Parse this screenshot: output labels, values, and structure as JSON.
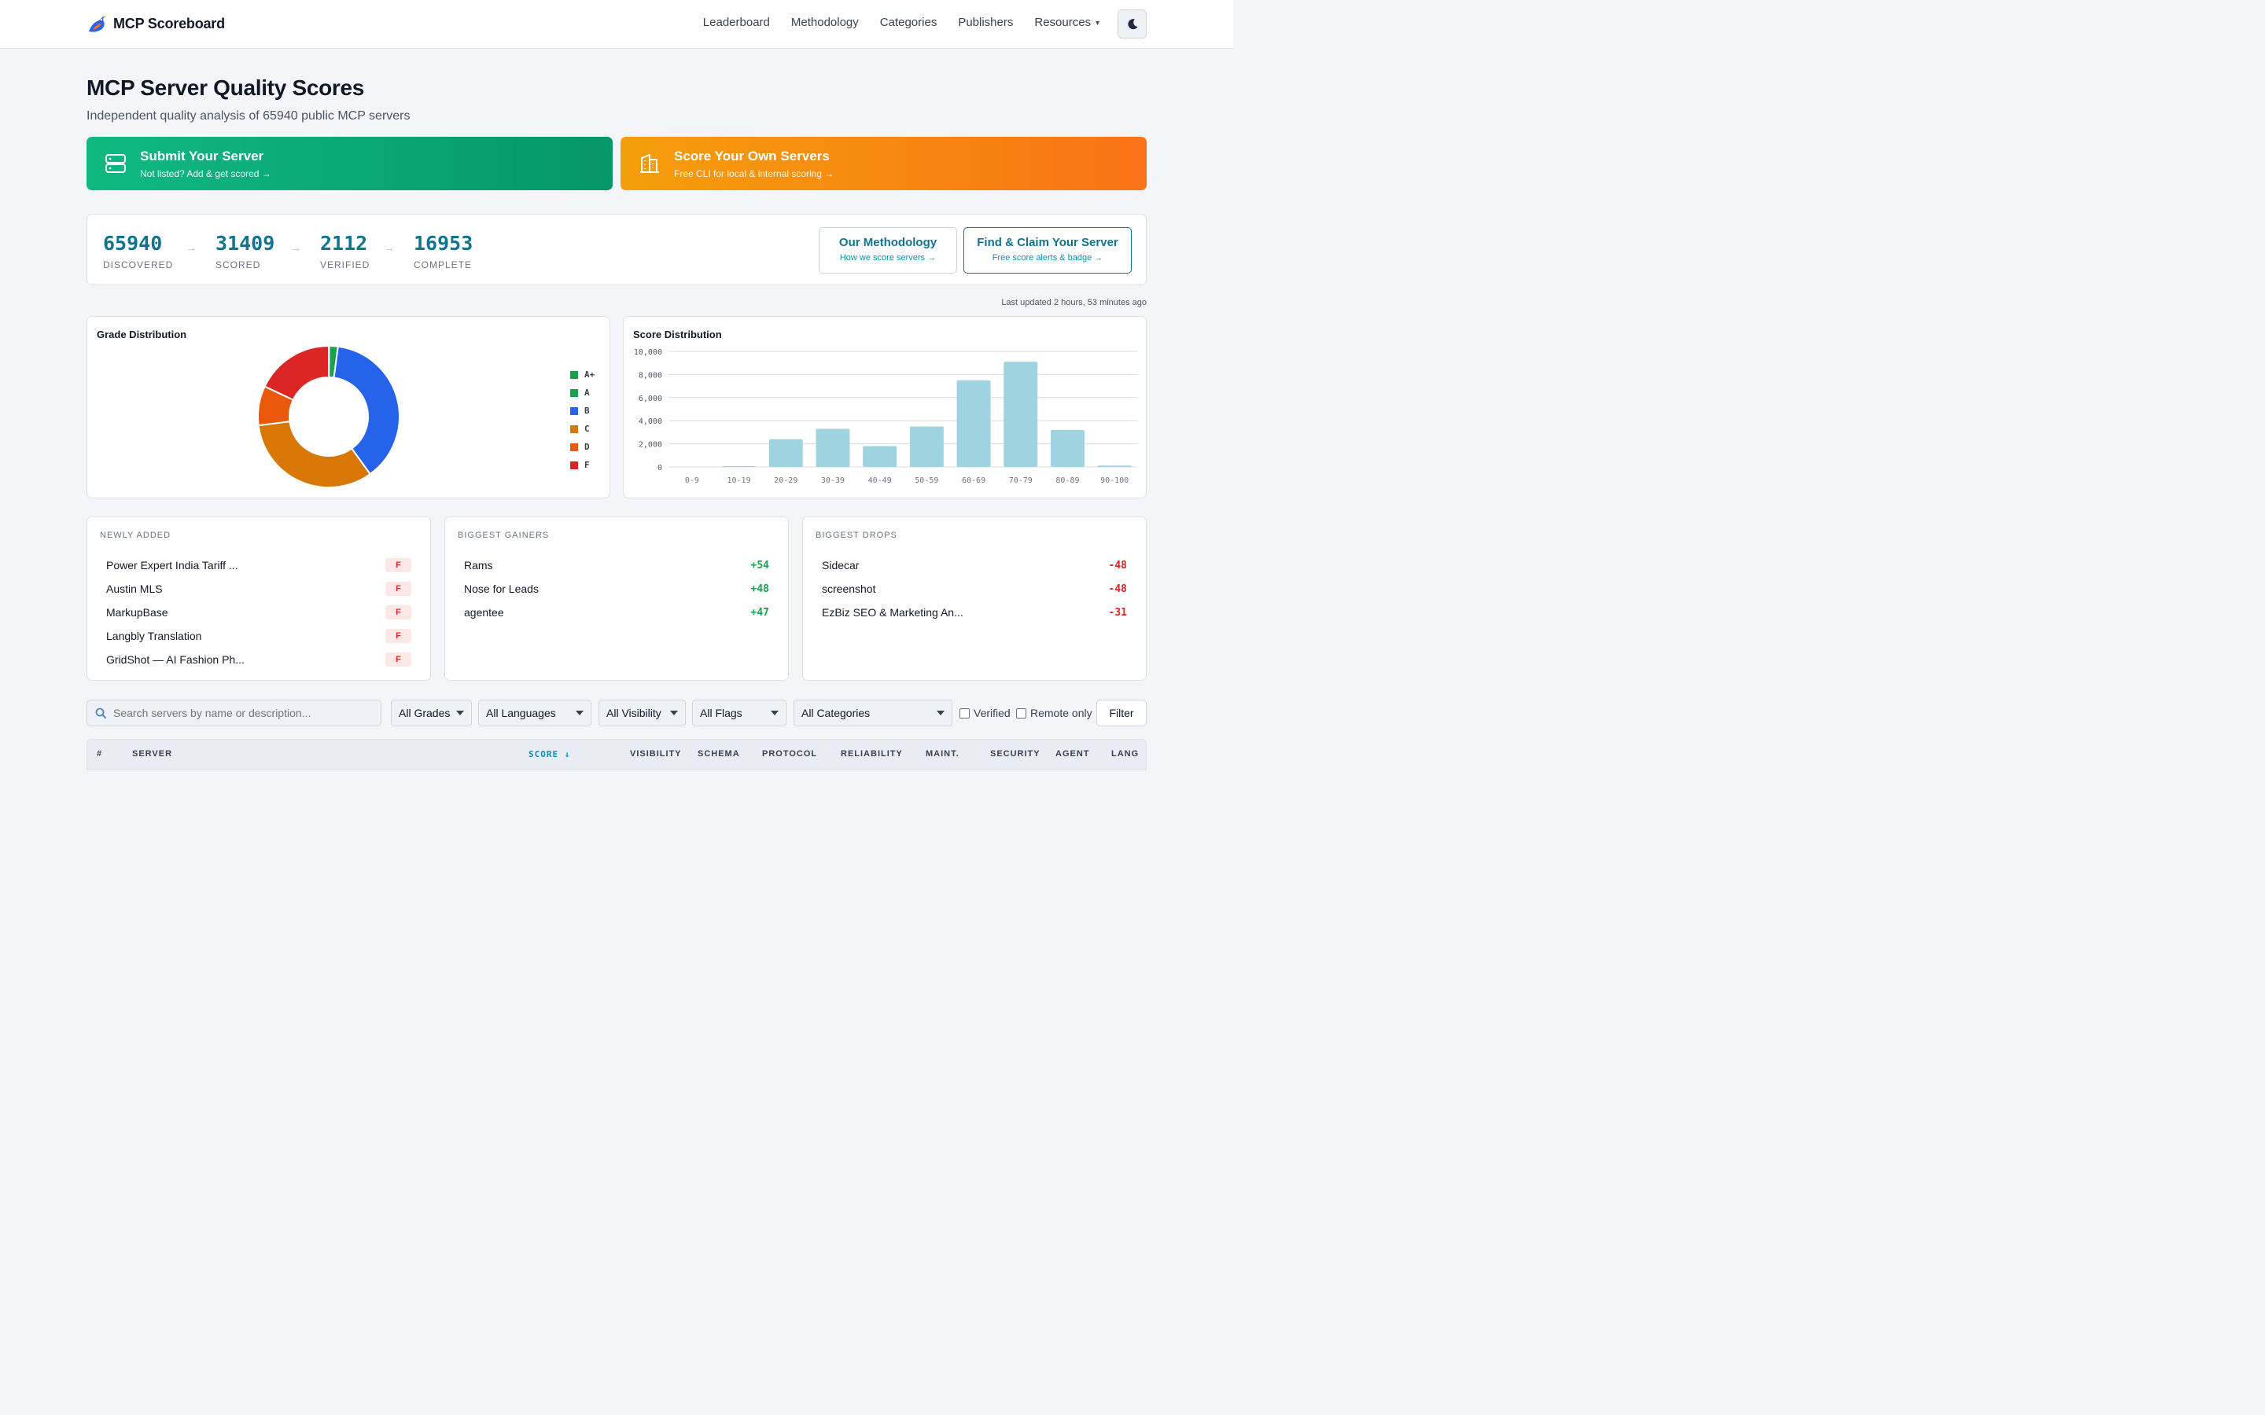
{
  "header": {
    "brand": "MCP Scoreboard",
    "nav": [
      "Leaderboard",
      "Methodology",
      "Categories",
      "Publishers",
      "Resources"
    ],
    "icons": {
      "logo": "bird-logo-icon",
      "theme": "moon-icon"
    }
  },
  "hero": {
    "title": "MCP Server Quality Scores",
    "subtitle": "Independent quality analysis of 65940 public MCP servers"
  },
  "banners": {
    "submit": {
      "title": "Submit Your Server",
      "subtitle": "Not listed? Add & get scored →",
      "icon": "server-icon",
      "color": "#10b981"
    },
    "score": {
      "title": "Score Your Own Servers",
      "subtitle": "Free CLI for local & internal scoring →",
      "icon": "building-icon",
      "color": "#f59e0b"
    }
  },
  "stats": {
    "items": [
      {
        "value": "65940",
        "label": "DISCOVERED"
      },
      {
        "value": "31409",
        "label": "SCORED"
      },
      {
        "value": "2112",
        "label": "VERIFIED"
      },
      {
        "value": "16953",
        "label": "COMPLETE"
      }
    ],
    "arrow": "→",
    "methodology": {
      "title": "Our Methodology",
      "subtitle": "How we score servers →"
    },
    "claim": {
      "title": "Find & Claim Your Server",
      "subtitle": "Free score alerts & badge →"
    }
  },
  "updated": "Last updated 2 hours, 53 minutes ago",
  "chart_data": [
    {
      "type": "pie",
      "title": "Grade Distribution",
      "categories": [
        "A+",
        "A",
        "B",
        "C",
        "D",
        "F"
      ],
      "values": [
        0.1,
        2.0,
        38.0,
        33.0,
        9.0,
        18.0
      ],
      "colors": [
        "#16a34a",
        "#16a34a",
        "#2563eb",
        "#d97706",
        "#ea580c",
        "#dc2626"
      ],
      "legend": "right"
    },
    {
      "type": "bar",
      "title": "Score Distribution",
      "categories": [
        "0-9",
        "10-19",
        "20-29",
        "30-39",
        "40-49",
        "50-59",
        "60-69",
        "70-79",
        "80-89",
        "90-100"
      ],
      "values": [
        0,
        60,
        2400,
        3300,
        1800,
        3500,
        7500,
        9100,
        3200,
        120
      ],
      "ylim": [
        0,
        10000
      ],
      "yticks": [
        "0",
        "2,000",
        "4,000",
        "6,000",
        "8,000",
        "10,000"
      ],
      "ytick_values": [
        0,
        2000,
        4000,
        6000,
        8000,
        10000
      ],
      "grid": true,
      "color": "#9fd3e0"
    }
  ],
  "lists": {
    "newly": {
      "label": "NEWLY ADDED",
      "items": [
        {
          "name": "Power Expert India Tariff ...",
          "grade": "F"
        },
        {
          "name": "Austin MLS",
          "grade": "F"
        },
        {
          "name": "MarkupBase",
          "grade": "F"
        },
        {
          "name": "Langbly Translation",
          "grade": "F"
        },
        {
          "name": "GridShot — AI Fashion Ph...",
          "grade": "F"
        }
      ]
    },
    "gainers": {
      "label": "BIGGEST GAINERS",
      "items": [
        {
          "name": "Rams",
          "delta": "+54"
        },
        {
          "name": "Nose for Leads",
          "delta": "+48"
        },
        {
          "name": "agentee",
          "delta": "+47"
        }
      ]
    },
    "drops": {
      "label": "BIGGEST DROPS",
      "items": [
        {
          "name": "Sidecar",
          "delta": "-48"
        },
        {
          "name": "screenshot",
          "delta": "-48"
        },
        {
          "name": "EzBiz SEO & Marketing An...",
          "delta": "-31"
        }
      ]
    }
  },
  "filters": {
    "search_placeholder": "Search servers by name or description...",
    "grades": "All Grades",
    "languages": "All Languages",
    "visibility": "All Visibility",
    "flags": "All Flags",
    "categories": "All Categories",
    "verified": "Verified",
    "remote": "Remote only",
    "filter_button": "Filter"
  },
  "table": {
    "columns": [
      "#",
      "SERVER",
      "SCORE ↓",
      "VISIBILITY",
      "SCHEMA",
      "PROTOCOL",
      "RELIABILITY",
      "MAINT.",
      "SECURITY",
      "AGENT",
      "LANG"
    ]
  }
}
